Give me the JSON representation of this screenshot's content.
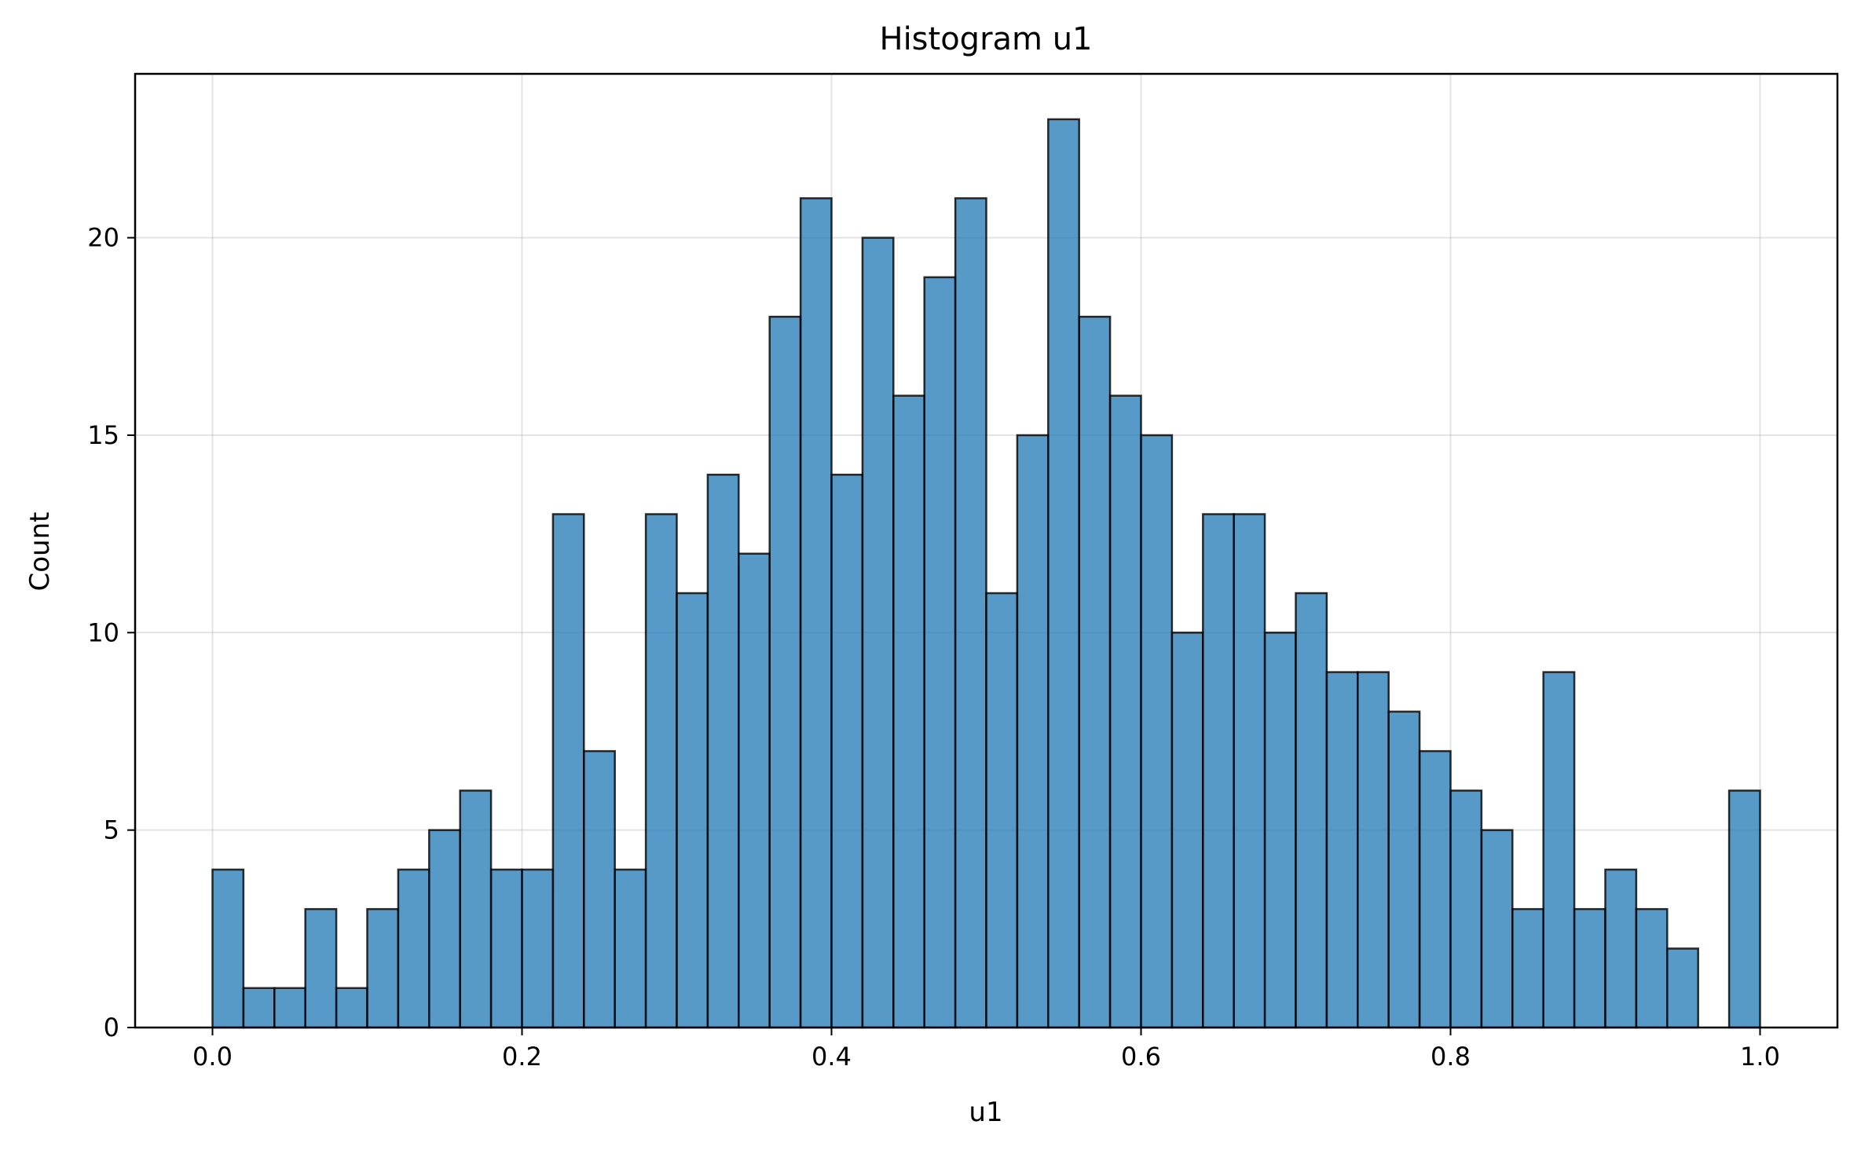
{
  "chart_data": {
    "type": "bar",
    "title": "Histogram u1",
    "xlabel": "u1",
    "ylabel": "Count",
    "bin_width": 0.02,
    "x": [
      0.0,
      0.02,
      0.04,
      0.06,
      0.08,
      0.1,
      0.12,
      0.14,
      0.16,
      0.18,
      0.2,
      0.22,
      0.24,
      0.26,
      0.28,
      0.3,
      0.32,
      0.34,
      0.36,
      0.38,
      0.4,
      0.42,
      0.44,
      0.46,
      0.48,
      0.5,
      0.52,
      0.54,
      0.56,
      0.58,
      0.6,
      0.62,
      0.64,
      0.66,
      0.68,
      0.7,
      0.72,
      0.74,
      0.76,
      0.78,
      0.8,
      0.82,
      0.84,
      0.86,
      0.88,
      0.9,
      0.92,
      0.94,
      0.96,
      0.98
    ],
    "values": [
      4,
      1,
      1,
      3,
      1,
      3,
      4,
      5,
      6,
      4,
      4,
      13,
      7,
      4,
      13,
      11,
      14,
      12,
      18,
      21,
      14,
      20,
      16,
      19,
      21,
      11,
      15,
      23,
      18,
      16,
      15,
      10,
      13,
      13,
      10,
      11,
      9,
      9,
      8,
      7,
      6,
      5,
      3,
      9,
      3,
      4,
      3,
      2,
      0,
      6
    ],
    "xlim": [
      -0.05,
      1.05
    ],
    "ylim": [
      0,
      24.15
    ],
    "xticks": [
      "0.0",
      "0.2",
      "0.4",
      "0.6",
      "0.8",
      "1.0"
    ],
    "yticks": [
      "0",
      "5",
      "10",
      "15",
      "20"
    ],
    "grid": true,
    "bar_color": "#1f77b4",
    "bar_opacity": 0.75,
    "edge_color": "#000000"
  }
}
